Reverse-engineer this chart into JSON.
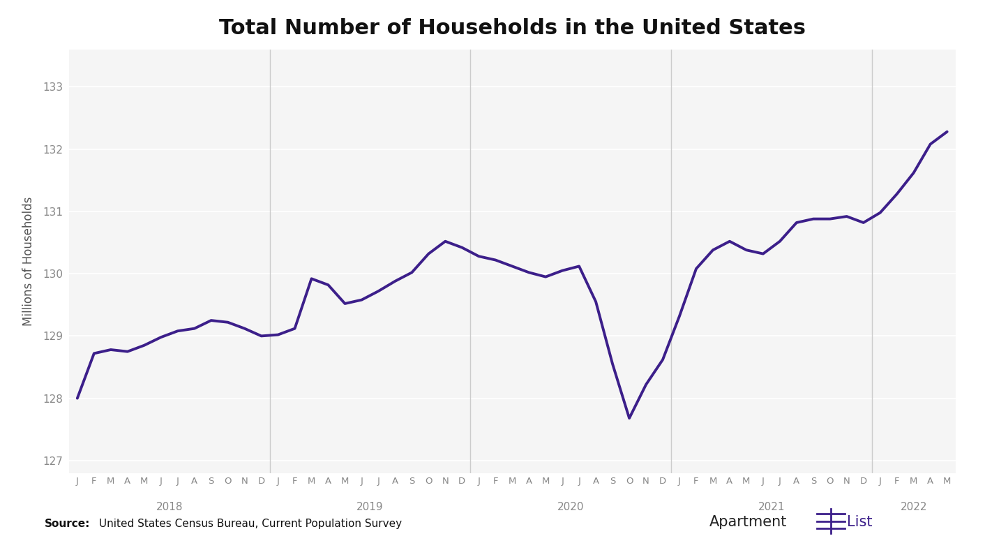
{
  "title": "Total Number of Households in the United States",
  "ylabel": "Millions of Households",
  "line_color": "#3c1f8a",
  "line_width": 2.8,
  "background_color": "#ffffff",
  "plot_bg_color": "#f5f5f5",
  "grid_color": "#ffffff",
  "vline_color": "#cccccc",
  "ylim": [
    126.8,
    133.6
  ],
  "yticks": [
    127,
    128,
    129,
    130,
    131,
    132,
    133
  ],
  "months_per_year": [
    "J",
    "F",
    "M",
    "A",
    "M",
    "J",
    "J",
    "A",
    "S",
    "O",
    "N",
    "D"
  ],
  "year_labels": [
    "2018",
    "2019",
    "2020",
    "2021",
    "2022"
  ],
  "year_starts": [
    0,
    12,
    24,
    36,
    48
  ],
  "n_months": 53,
  "values": [
    128.0,
    128.72,
    128.78,
    128.75,
    128.85,
    128.98,
    129.08,
    129.12,
    129.25,
    129.22,
    129.12,
    129.0,
    129.02,
    129.12,
    129.92,
    129.82,
    129.52,
    129.58,
    129.72,
    129.88,
    130.02,
    130.32,
    130.52,
    130.42,
    130.28,
    130.22,
    130.12,
    130.02,
    129.95,
    130.05,
    130.12,
    129.55,
    128.55,
    127.68,
    128.22,
    128.62,
    129.32,
    130.08,
    130.38,
    130.52,
    130.38,
    130.32,
    130.52,
    130.82,
    130.88,
    130.88,
    130.92,
    130.82,
    130.98,
    131.28,
    131.62,
    132.08,
    132.28
  ],
  "title_fontsize": 22,
  "tick_fontsize": 9.5,
  "ytick_fontsize": 11,
  "ylabel_fontsize": 12,
  "year_fontsize": 11,
  "source_fontsize": 11
}
